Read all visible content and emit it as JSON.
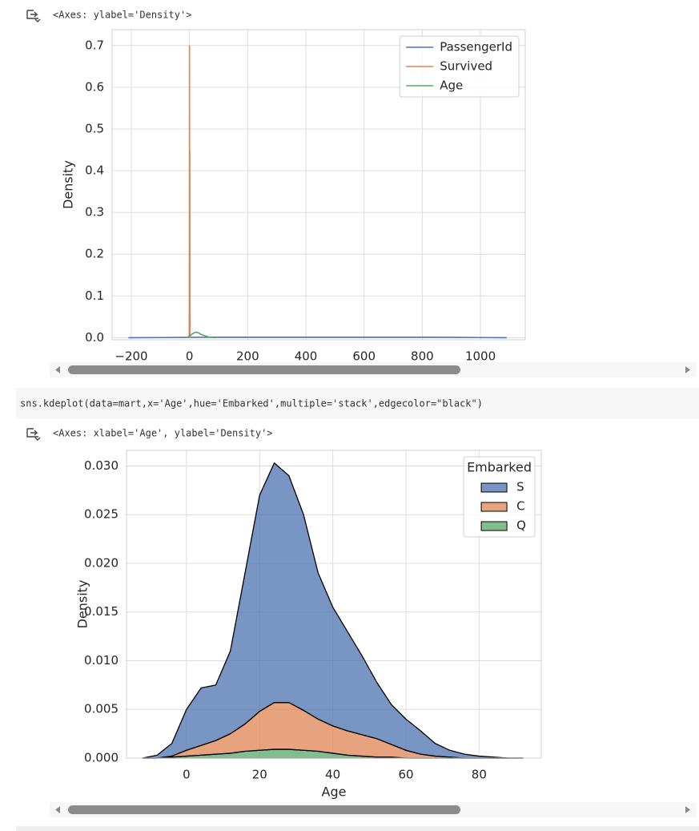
{
  "outputs": [
    "<Axes: ylabel='Density'>",
    "<Axes: xlabel='Age', ylabel='Density'>"
  ],
  "code": "sns.kdeplot(data=mart,x='Age',hue='Embarked',multiple='stack',edgecolor=\"black\")",
  "chart_data": [
    {
      "type": "line",
      "ylabel": "Density",
      "xlim": [
        -266,
        1154
      ],
      "ylim": [
        -0.005,
        0.738
      ],
      "xticks": [
        {
          "value": -200,
          "label": "−200"
        },
        0,
        200,
        400,
        600,
        800,
        1000
      ],
      "yticks": [
        {
          "value": 0,
          "label": "0.0"
        },
        0.1,
        0.2,
        0.3,
        0.4,
        0.5,
        0.6,
        0.7
      ],
      "grid": true,
      "legend": "upper right",
      "series": [
        {
          "name": "PassengerId",
          "color": "#4c72b0",
          "x": [
            -210,
            -100,
            0,
            100,
            200,
            300,
            400,
            500,
            600,
            700,
            800,
            900,
            1000,
            1090
          ],
          "values": [
            0,
            0.0003,
            0.0009,
            0.0011,
            0.0011,
            0.0011,
            0.0011,
            0.0011,
            0.0011,
            0.0011,
            0.0011,
            0.0009,
            0.0003,
            0
          ]
        },
        {
          "name": "Survived",
          "color": "#dd8452",
          "x": [
            -1,
            -0.5,
            0,
            0.5,
            1,
            1.5,
            2
          ],
          "values": [
            0,
            0.1,
            0.7,
            0.3,
            0.45,
            0.1,
            0
          ]
        },
        {
          "name": "Age",
          "color": "#55a868",
          "x": [
            -10,
            0,
            10,
            20,
            30,
            40,
            50,
            60,
            70,
            80,
            90
          ],
          "values": [
            0,
            0.004,
            0.009,
            0.013,
            0.012,
            0.008,
            0.005,
            0.003,
            0.001,
            0.0003,
            0
          ]
        }
      ]
    },
    {
      "type": "area",
      "stacked": true,
      "xlabel": "Age",
      "ylabel": "Density",
      "xlim": [
        -16.4,
        97
      ],
      "ylim": [
        0,
        0.0316
      ],
      "xticks": [
        0,
        20,
        40,
        60,
        80
      ],
      "yticks": [
        {
          "value": 0,
          "label": "0.000"
        },
        {
          "value": 0.005,
          "label": "0.005"
        },
        {
          "value": 0.01,
          "label": "0.010"
        },
        {
          "value": 0.015,
          "label": "0.015"
        },
        {
          "value": 0.02,
          "label": "0.020"
        },
        {
          "value": 0.025,
          "label": "0.025"
        },
        {
          "value": 0.03,
          "label": "0.030"
        }
      ],
      "grid": true,
      "legend": "upper right",
      "legend_title": "Embarked",
      "x": [
        -12,
        -8,
        -4,
        0,
        4,
        8,
        12,
        16,
        20,
        24,
        28,
        32,
        36,
        40,
        44,
        48,
        52,
        56,
        60,
        64,
        68,
        72,
        76,
        80,
        84,
        88,
        92
      ],
      "series": [
        {
          "name": "S",
          "color": "#4c72b0",
          "values": [
            0,
            0.0003,
            0.0013,
            0.0042,
            0.0059,
            0.0057,
            0.0085,
            0.0155,
            0.0222,
            0.0246,
            0.0233,
            0.0201,
            0.015,
            0.0122,
            0.0102,
            0.0081,
            0.0058,
            0.0041,
            0.0032,
            0.0024,
            0.0013,
            0.0007,
            0.0004,
            0.0002,
            0.0001,
            0,
            0
          ]
        },
        {
          "name": "C",
          "color": "#dd8452",
          "values": [
            0,
            0,
            0.0001,
            0.0006,
            0.001,
            0.0014,
            0.002,
            0.0028,
            0.004,
            0.0048,
            0.0048,
            0.0041,
            0.0033,
            0.0028,
            0.0025,
            0.0022,
            0.0019,
            0.0013,
            0.0008,
            0.0004,
            0.0002,
            0.0001,
            0,
            0,
            0,
            0,
            0
          ]
        },
        {
          "name": "Q",
          "color": "#55a868",
          "values": [
            0,
            0,
            0.0001,
            0.0002,
            0.0003,
            0.0004,
            0.0005,
            0.0007,
            0.0008,
            0.0009,
            0.0009,
            0.0008,
            0.0007,
            0.0005,
            0.0003,
            0.0002,
            0.0001,
            0.0001,
            0,
            0,
            0,
            0,
            0,
            0,
            0,
            0,
            0
          ]
        }
      ]
    }
  ]
}
